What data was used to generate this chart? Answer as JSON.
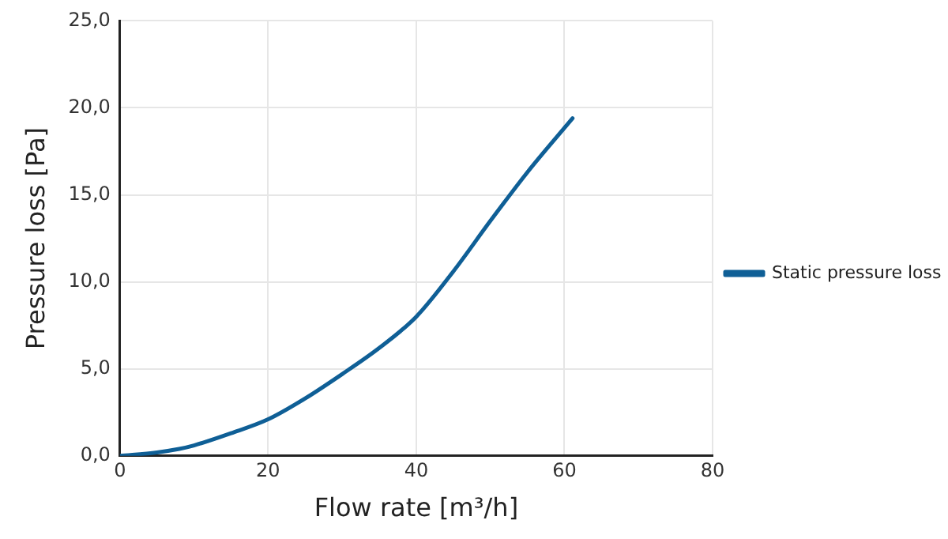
{
  "chart_data": {
    "type": "line",
    "xlabel": "Flow rate [m³/h]",
    "ylabel": "Pressure loss [Pa]",
    "series": [
      {
        "name": "Static pressure loss",
        "color": "#0f5f96",
        "x": [
          0,
          5,
          8,
          10,
          15,
          20,
          25,
          30,
          35,
          40,
          45,
          50,
          55,
          61.1
        ],
        "values": [
          0,
          0.2,
          0.4,
          0.6,
          1.3,
          2.1,
          3.3,
          4.7,
          6.2,
          8.0,
          10.6,
          13.5,
          16.3,
          19.4
        ]
      }
    ],
    "xlim": [
      0,
      80
    ],
    "xticks": [
      0,
      20,
      40,
      60,
      80
    ],
    "ylim": [
      0,
      25
    ],
    "yticks": [
      {
        "value": 0,
        "label": "0,0"
      },
      {
        "value": 5,
        "label": "5,0"
      },
      {
        "value": 10,
        "label": "10,0"
      },
      {
        "value": 15,
        "label": "15,0"
      },
      {
        "value": 20,
        "label": "20,0"
      },
      {
        "value": 25,
        "label": "25,0"
      }
    ],
    "grid": true,
    "legend": "right",
    "marker": "none",
    "line_style": "solid"
  }
}
